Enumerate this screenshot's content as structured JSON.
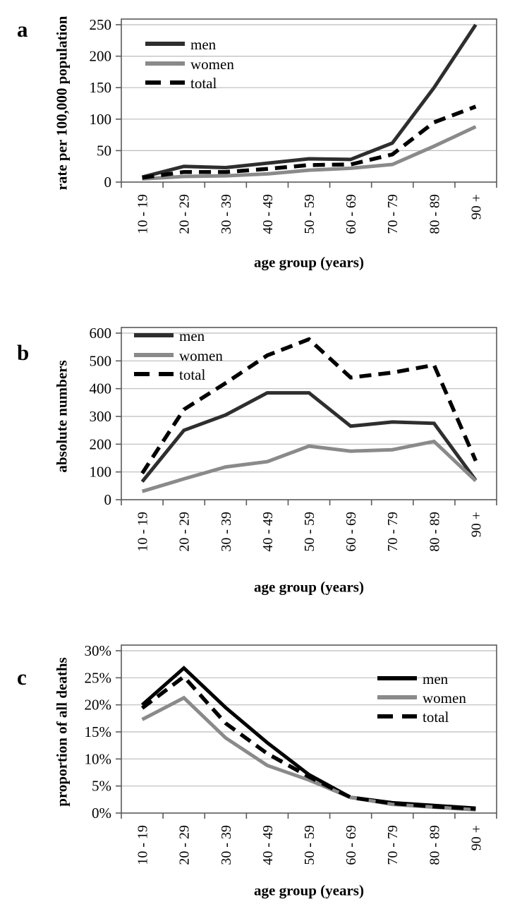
{
  "panel_letters": [
    "a",
    "b",
    "c"
  ],
  "colors": {
    "men_dark": "#2e2e2e",
    "men_black": "#000000",
    "women_gray": "#8a8a8a",
    "total_black": "#000000",
    "gridline": "#bcbcbc",
    "axis": "#5a5a5a"
  },
  "chart_data": [
    {
      "type": "line",
      "panel": "a",
      "ylabel": "rate per 100,000 population",
      "xlabel": "age group (years)",
      "categories": [
        "10 - 19",
        "20 - 29",
        "30 - 39",
        "40 - 49",
        "50 - 59",
        "60 - 69",
        "70 - 79",
        "80 - 89",
        "90 +"
      ],
      "series": [
        {
          "name": "men",
          "values": [
            8,
            25,
            23,
            30,
            37,
            36,
            62,
            150,
            250
          ],
          "color": "#2e2e2e",
          "style": "solid"
        },
        {
          "name": "women",
          "values": [
            5,
            9,
            10,
            13,
            19,
            22,
            28,
            57,
            88
          ],
          "color": "#8a8a8a",
          "style": "solid"
        },
        {
          "name": "total",
          "values": [
            7,
            16,
            16,
            21,
            27,
            28,
            44,
            95,
            120
          ],
          "color": "#000000",
          "style": "dashed"
        }
      ],
      "ylim": [
        0,
        250
      ],
      "ytick_step": 50,
      "ytick_suffix": "",
      "grid": true,
      "legend_position": "top-left"
    },
    {
      "type": "line",
      "panel": "b",
      "ylabel": "absolute numbers",
      "xlabel": "age group (years)",
      "categories": [
        "10 - 19",
        "20 - 29",
        "30 - 39",
        "40 - 49",
        "50 - 59",
        "60 - 69",
        "70 - 79",
        "80 - 89",
        "90 +"
      ],
      "series": [
        {
          "name": "men",
          "values": [
            65,
            250,
            305,
            385,
            385,
            265,
            280,
            275,
            70
          ],
          "color": "#2e2e2e",
          "style": "solid"
        },
        {
          "name": "women",
          "values": [
            30,
            75,
            118,
            137,
            193,
            175,
            180,
            210,
            68
          ],
          "color": "#8a8a8a",
          "style": "solid"
        },
        {
          "name": "total",
          "values": [
            95,
            325,
            420,
            520,
            578,
            440,
            458,
            485,
            140
          ],
          "color": "#000000",
          "style": "dashed"
        }
      ],
      "ylim": [
        0,
        600
      ],
      "ytick_step": 100,
      "ytick_suffix": "",
      "grid": true,
      "legend_position": "top-left"
    },
    {
      "type": "line",
      "panel": "c",
      "ylabel": "proportion of all deaths",
      "xlabel": "age group (years)",
      "categories": [
        "10 - 19",
        "20 - 29",
        "30 - 39",
        "40 - 49",
        "50 - 59",
        "60 - 69",
        "70 - 79",
        "80 - 89",
        "90 +"
      ],
      "series": [
        {
          "name": "men",
          "values": [
            20,
            26.8,
            19.5,
            13,
            7.1,
            2.9,
            1.9,
            1.4,
            0.9
          ],
          "color": "#000000",
          "style": "solid"
        },
        {
          "name": "women",
          "values": [
            17.3,
            21.3,
            13.9,
            8.8,
            6.1,
            2.9,
            1.6,
            1.1,
            0.6
          ],
          "color": "#8a8a8a",
          "style": "solid"
        },
        {
          "name": "total",
          "values": [
            19.4,
            25.2,
            16.6,
            11,
            6.7,
            2.9,
            1.8,
            1.2,
            0.8
          ],
          "color": "#000000",
          "style": "dashed"
        }
      ],
      "ylim": [
        0,
        30
      ],
      "ytick_step": 5,
      "ytick_suffix": "%",
      "grid": true,
      "legend_position": "top-right"
    }
  ]
}
